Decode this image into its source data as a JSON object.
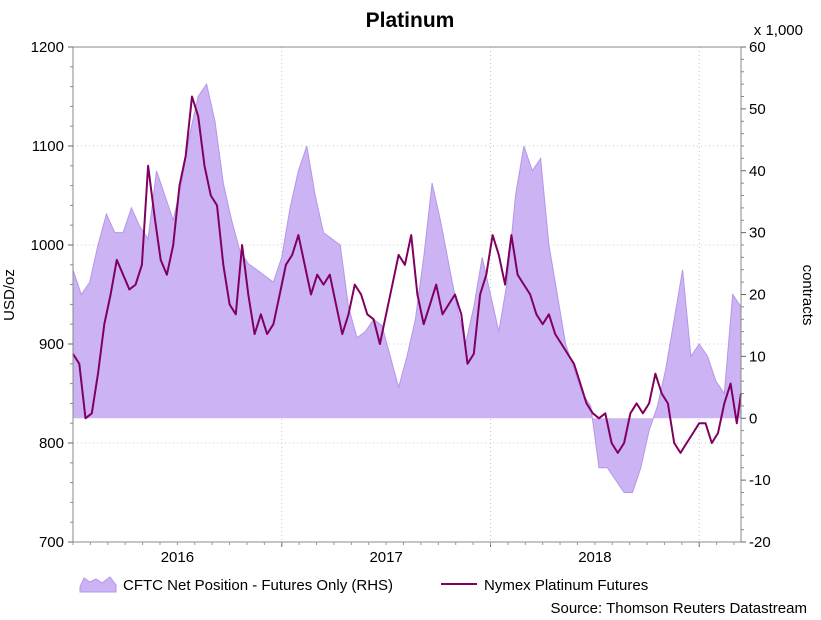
{
  "chart_data": {
    "type": "line",
    "title": "Platinum",
    "left_axis": {
      "label": "USD/oz",
      "ylim": [
        700,
        1200
      ],
      "ticks": [
        700,
        800,
        900,
        1000,
        1100,
        1200
      ]
    },
    "right_axis": {
      "label": "contracts",
      "unit_note": "x 1,000",
      "ylim": [
        -20,
        60
      ],
      "ticks": [
        -20,
        -10,
        0,
        10,
        20,
        30,
        40,
        50,
        60
      ]
    },
    "x_axis": {
      "start": 2015.5,
      "end": 2018.7,
      "ticks": [
        "2016",
        "2017",
        "2018"
      ],
      "tick_positions": [
        2016.0,
        2017.0,
        2018.0
      ],
      "gridlines": [
        2016.5,
        2017.5,
        2018.5
      ]
    },
    "grid": true,
    "legend_position": "bottom",
    "source": "Source: Thomson Reuters Datastream",
    "series": [
      {
        "name": "CFTC Net Position - Futures Only (RHS)",
        "type": "area",
        "axis": "right",
        "color": "#ccb3f4",
        "edge_color": "#b596e8",
        "x": [
          2015.5,
          2015.54,
          2015.58,
          2015.62,
          2015.66,
          2015.7,
          2015.74,
          2015.78,
          2015.82,
          2015.86,
          2015.9,
          2015.94,
          2015.98,
          2016.02,
          2016.06,
          2016.1,
          2016.14,
          2016.18,
          2016.22,
          2016.26,
          2016.3,
          2016.34,
          2016.38,
          2016.42,
          2016.46,
          2016.5,
          2016.54,
          2016.58,
          2016.62,
          2016.66,
          2016.7,
          2016.74,
          2016.78,
          2016.82,
          2016.86,
          2016.9,
          2016.94,
          2016.98,
          2017.02,
          2017.06,
          2017.1,
          2017.14,
          2017.18,
          2017.22,
          2017.26,
          2017.3,
          2017.34,
          2017.38,
          2017.42,
          2017.46,
          2017.5,
          2017.54,
          2017.58,
          2017.62,
          2017.66,
          2017.7,
          2017.74,
          2017.78,
          2017.82,
          2017.86,
          2017.9,
          2017.94,
          2017.98,
          2018.02,
          2018.06,
          2018.1,
          2018.14,
          2018.18,
          2018.22,
          2018.26,
          2018.3,
          2018.34,
          2018.38,
          2018.42,
          2018.46,
          2018.5,
          2018.54,
          2018.58,
          2018.62,
          2018.66,
          2018.7
        ],
        "values": [
          24,
          20,
          22,
          28,
          33,
          30,
          30,
          34,
          31,
          29,
          40,
          36,
          32,
          38,
          46,
          52,
          54,
          48,
          38,
          32,
          27,
          25,
          24,
          23,
          22,
          26,
          34,
          40,
          44,
          36,
          30,
          29,
          28,
          18,
          13,
          14,
          16,
          15,
          10,
          5,
          10,
          16,
          26,
          38,
          32,
          25,
          18,
          12,
          18,
          26,
          20,
          14,
          22,
          36,
          44,
          40,
          42,
          28,
          20,
          12,
          8,
          4,
          2,
          -8,
          -8,
          -10,
          -12,
          -12,
          -8,
          -2,
          2,
          8,
          16,
          24,
          10,
          12,
          10,
          6,
          4,
          20,
          18
        ]
      },
      {
        "name": "Nymex Platinum Futures",
        "type": "line",
        "axis": "left",
        "color": "#800060",
        "x": [
          2015.5,
          2015.53,
          2015.56,
          2015.59,
          2015.62,
          2015.65,
          2015.68,
          2015.71,
          2015.74,
          2015.77,
          2015.8,
          2015.83,
          2015.86,
          2015.89,
          2015.92,
          2015.95,
          2015.98,
          2016.01,
          2016.04,
          2016.07,
          2016.1,
          2016.13,
          2016.16,
          2016.19,
          2016.22,
          2016.25,
          2016.28,
          2016.31,
          2016.34,
          2016.37,
          2016.4,
          2016.43,
          2016.46,
          2016.49,
          2016.52,
          2016.55,
          2016.58,
          2016.61,
          2016.64,
          2016.67,
          2016.7,
          2016.73,
          2016.76,
          2016.79,
          2016.82,
          2016.85,
          2016.88,
          2016.91,
          2016.94,
          2016.97,
          2017.0,
          2017.03,
          2017.06,
          2017.09,
          2017.12,
          2017.15,
          2017.18,
          2017.21,
          2017.24,
          2017.27,
          2017.3,
          2017.33,
          2017.36,
          2017.39,
          2017.42,
          2017.45,
          2017.48,
          2017.51,
          2017.54,
          2017.57,
          2017.6,
          2017.63,
          2017.66,
          2017.69,
          2017.72,
          2017.75,
          2017.78,
          2017.81,
          2017.84,
          2017.87,
          2017.9,
          2017.93,
          2017.96,
          2017.99,
          2018.02,
          2018.05,
          2018.08,
          2018.11,
          2018.14,
          2018.17,
          2018.2,
          2018.23,
          2018.26,
          2018.29,
          2018.32,
          2018.35,
          2018.38,
          2018.41,
          2018.44,
          2018.47,
          2018.5,
          2018.53,
          2018.56,
          2018.59,
          2018.62,
          2018.65,
          2018.68,
          2018.7
        ],
        "values": [
          890,
          880,
          825,
          830,
          870,
          920,
          950,
          985,
          970,
          955,
          960,
          980,
          1080,
          1030,
          985,
          970,
          1000,
          1060,
          1090,
          1150,
          1130,
          1080,
          1050,
          1040,
          980,
          940,
          930,
          1000,
          950,
          910,
          930,
          910,
          920,
          950,
          980,
          990,
          1010,
          980,
          950,
          970,
          960,
          970,
          940,
          910,
          930,
          960,
          950,
          930,
          925,
          900,
          930,
          960,
          990,
          980,
          1010,
          950,
          920,
          940,
          960,
          930,
          940,
          950,
          930,
          880,
          890,
          950,
          970,
          1010,
          990,
          960,
          1010,
          970,
          960,
          950,
          930,
          920,
          930,
          910,
          900,
          890,
          880,
          860,
          840,
          830,
          825,
          830,
          800,
          790,
          800,
          830,
          840,
          830,
          840,
          870,
          850,
          840,
          800,
          790,
          800,
          810,
          820,
          820,
          800,
          810,
          840,
          860,
          820,
          850
        ]
      }
    ]
  }
}
